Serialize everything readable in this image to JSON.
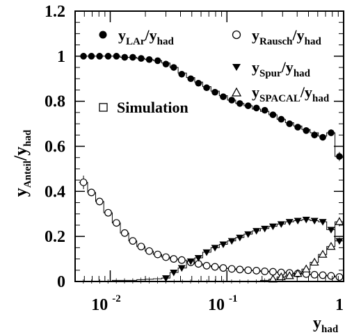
{
  "chart_data": {
    "type": "scatter",
    "x_scale": "log",
    "xlim": [
      0.005,
      1.0
    ],
    "ylim": [
      0,
      1.2
    ],
    "x_ticks": [
      {
        "value": 0.01,
        "base": "10",
        "exp": "-2"
      },
      {
        "value": 0.1,
        "base": "10",
        "exp": "-1"
      },
      {
        "value": 1.0,
        "base": "1",
        "exp": ""
      }
    ],
    "y_ticks": [
      {
        "value": 0,
        "label": "0"
      },
      {
        "value": 0.2,
        "label": "0.2"
      },
      {
        "value": 0.4,
        "label": "0.4"
      },
      {
        "value": 0.6,
        "label": "0.6"
      },
      {
        "value": 0.8,
        "label": "0.8"
      },
      {
        "value": 1.0,
        "label": "1"
      },
      {
        "value": 1.2,
        "label": "1.2"
      }
    ],
    "xlabel": {
      "main": "y",
      "sub": "had"
    },
    "ylabel": {
      "main1": "y",
      "sub1": "Anteil",
      "main2": "/y",
      "sub2": "had"
    },
    "legend": [
      {
        "marker": "filled-circle",
        "main": "y",
        "sub": "LAr",
        "slash": "/y",
        "sub2": "had"
      },
      {
        "marker": "open-circle",
        "main": "y",
        "sub": "Rausch",
        "slash": "/y",
        "sub2": "had"
      },
      {
        "marker": "filled-triangle-down",
        "main": "y",
        "sub": "Spur",
        "slash": "/y",
        "sub2": "had"
      },
      {
        "marker": "open-triangle-up",
        "main": "y",
        "sub": "SPACAL",
        "slash": "/y",
        "sub2": "had"
      },
      {
        "marker": "open-square",
        "text": "Simulation"
      }
    ],
    "series": [
      {
        "marker": "filled-circle",
        "x": [
          0.0059,
          0.0069,
          0.0081,
          0.0096,
          0.0113,
          0.0133,
          0.0156,
          0.0184,
          0.0216,
          0.0255,
          0.03,
          0.035,
          0.041,
          0.049,
          0.057,
          0.067,
          0.079,
          0.093,
          0.11,
          0.129,
          0.152,
          0.179,
          0.211,
          0.248,
          0.292,
          0.344,
          0.405,
          0.478,
          0.563,
          0.663,
          0.781,
          0.92
        ],
        "y": [
          1.0,
          1.0,
          1.0,
          1.0,
          1.0,
          0.995,
          0.995,
          0.99,
          0.985,
          0.98,
          0.965,
          0.95,
          0.92,
          0.9,
          0.88,
          0.86,
          0.84,
          0.82,
          0.805,
          0.79,
          0.78,
          0.77,
          0.76,
          0.74,
          0.72,
          0.7,
          0.685,
          0.67,
          0.65,
          0.64,
          0.66,
          0.555
        ],
        "yerr": [
          0.006,
          0.004,
          0.004,
          0.004,
          0.004,
          0.004,
          0.004,
          0.004,
          0.004,
          0.004,
          0.004,
          0.004,
          0.004,
          0.004,
          0.004,
          0.004,
          0.004,
          0.004,
          0.005,
          0.005,
          0.005,
          0.005,
          0.005,
          0.005,
          0.006,
          0.006,
          0.006,
          0.008,
          0.01,
          0.012,
          0.015,
          0.02
        ]
      },
      {
        "marker": "open-circle",
        "x": [
          0.0059,
          0.0069,
          0.0081,
          0.0096,
          0.0113,
          0.0133,
          0.0156,
          0.0184,
          0.0216,
          0.0255,
          0.03,
          0.035,
          0.041,
          0.049,
          0.057,
          0.067,
          0.079,
          0.093,
          0.11,
          0.129,
          0.152,
          0.179,
          0.211,
          0.248,
          0.292,
          0.344,
          0.405,
          0.478,
          0.563,
          0.663,
          0.781,
          0.92
        ],
        "y": [
          0.44,
          0.395,
          0.355,
          0.305,
          0.26,
          0.215,
          0.18,
          0.155,
          0.135,
          0.12,
          0.108,
          0.1,
          0.095,
          0.085,
          0.078,
          0.07,
          0.065,
          0.06,
          0.056,
          0.053,
          0.05,
          0.048,
          0.045,
          0.043,
          0.04,
          0.038,
          0.035,
          0.033,
          0.03,
          0.028,
          0.025,
          0.02
        ],
        "yerr": [
          0.03,
          0.015,
          0.01,
          0.008,
          0.006,
          0.005,
          0.005,
          0.004,
          0.004,
          0.004,
          0.004,
          0.004,
          0.004,
          0.004,
          0.004,
          0.004,
          0.004,
          0.004,
          0.004,
          0.004,
          0.004,
          0.004,
          0.004,
          0.004,
          0.004,
          0.004,
          0.004,
          0.005,
          0.005,
          0.005,
          0.006,
          0.008
        ]
      },
      {
        "marker": "filled-triangle-down",
        "x": [
          0.03,
          0.035,
          0.041,
          0.049,
          0.057,
          0.067,
          0.079,
          0.093,
          0.11,
          0.129,
          0.152,
          0.179,
          0.211,
          0.248,
          0.292,
          0.344,
          0.405,
          0.478,
          0.563,
          0.663,
          0.781,
          0.92
        ],
        "y": [
          0.015,
          0.04,
          0.06,
          0.09,
          0.105,
          0.13,
          0.15,
          0.165,
          0.18,
          0.195,
          0.21,
          0.225,
          0.235,
          0.245,
          0.255,
          0.265,
          0.27,
          0.275,
          0.27,
          0.265,
          0.23,
          0.18
        ],
        "yerr": [
          0.004,
          0.004,
          0.004,
          0.004,
          0.004,
          0.004,
          0.004,
          0.004,
          0.004,
          0.004,
          0.004,
          0.004,
          0.004,
          0.004,
          0.005,
          0.005,
          0.005,
          0.006,
          0.007,
          0.008,
          0.01,
          0.015
        ]
      },
      {
        "marker": "open-triangle-up",
        "x": [
          0.248,
          0.292,
          0.344,
          0.405,
          0.478,
          0.563,
          0.663,
          0.781,
          0.92
        ],
        "y": [
          0.01,
          0.02,
          0.025,
          0.035,
          0.055,
          0.085,
          0.12,
          0.155,
          0.265
        ],
        "yerr": [
          0.003,
          0.003,
          0.004,
          0.004,
          0.005,
          0.006,
          0.008,
          0.01,
          0.02
        ]
      }
    ],
    "simulation": [
      {
        "edges": [
          0.0054,
          0.0064,
          0.0075,
          0.0088,
          0.0104,
          0.0122,
          0.0144,
          0.0169,
          0.0199,
          0.0234,
          0.0276,
          0.0325,
          0.0382,
          0.045,
          0.053,
          0.062,
          0.073,
          0.086,
          0.101,
          0.119,
          0.14,
          0.165,
          0.194,
          0.229,
          0.269,
          0.317,
          0.373,
          0.439,
          0.517,
          0.608,
          0.716,
          0.843,
          1.0
        ],
        "values": [
          1.0,
          1.0,
          1.0,
          1.0,
          1.0,
          0.995,
          0.995,
          0.99,
          0.985,
          0.98,
          0.97,
          0.95,
          0.925,
          0.905,
          0.885,
          0.865,
          0.845,
          0.825,
          0.805,
          0.79,
          0.78,
          0.765,
          0.755,
          0.74,
          0.72,
          0.705,
          0.69,
          0.675,
          0.66,
          0.645,
          0.66,
          0.555
        ]
      },
      {
        "edges": [
          0.0054,
          0.0064,
          0.0075,
          0.0088,
          0.0104,
          0.0122,
          0.0144,
          0.0169,
          0.0199,
          0.0234,
          0.0276,
          0.0325,
          0.0382,
          0.045,
          0.053,
          0.062,
          0.073,
          0.086,
          0.101,
          0.119,
          0.14,
          0.165,
          0.194,
          0.229,
          0.269,
          0.317,
          0.373,
          0.439,
          0.517,
          0.608,
          0.716,
          0.843,
          1.0
        ],
        "values": [
          0.44,
          0.395,
          0.355,
          0.305,
          0.26,
          0.215,
          0.18,
          0.155,
          0.135,
          0.12,
          0.108,
          0.1,
          0.095,
          0.085,
          0.078,
          0.07,
          0.065,
          0.06,
          0.056,
          0.053,
          0.05,
          0.048,
          0.045,
          0.043,
          0.04,
          0.038,
          0.035,
          0.033,
          0.03,
          0.028,
          0.025,
          0.02
        ]
      },
      {
        "edges": [
          0.0054,
          0.0064,
          0.0075,
          0.0088,
          0.0104,
          0.0122,
          0.0144,
          0.0169,
          0.0199,
          0.0234,
          0.0276,
          0.0325,
          0.0382,
          0.045,
          0.053,
          0.062,
          0.073,
          0.086,
          0.101,
          0.119,
          0.14,
          0.165,
          0.194,
          0.229,
          0.269,
          0.317,
          0.373,
          0.439,
          0.517,
          0.608,
          0.716,
          0.843,
          1.0
        ],
        "values": [
          0.0,
          0.0,
          0.0,
          0.0,
          0.005,
          0.005,
          0.005,
          0.008,
          0.01,
          0.012,
          0.015,
          0.04,
          0.06,
          0.09,
          0.105,
          0.13,
          0.15,
          0.165,
          0.18,
          0.195,
          0.21,
          0.225,
          0.235,
          0.245,
          0.255,
          0.265,
          0.27,
          0.275,
          0.27,
          0.265,
          0.23,
          0.18
        ]
      },
      {
        "edges": [
          0.0054,
          0.0064,
          0.0075,
          0.0088,
          0.0104,
          0.0122,
          0.0144,
          0.0169,
          0.0199,
          0.0234,
          0.0276,
          0.0325,
          0.0382,
          0.045,
          0.053,
          0.062,
          0.073,
          0.086,
          0.101,
          0.119,
          0.14,
          0.165,
          0.194,
          0.229,
          0.269,
          0.317,
          0.373,
          0.439,
          0.517,
          0.608,
          0.716,
          0.843,
          1.0
        ],
        "values": [
          0.0,
          0.0,
          0.0,
          0.0,
          0.0,
          0.0,
          0.0,
          0.0,
          0.0,
          0.0,
          0.0,
          0.0,
          0.0,
          0.0,
          0.0,
          0.0,
          0.0,
          0.0,
          0.0,
          0.0,
          0.0,
          0.0,
          0.005,
          0.01,
          0.02,
          0.025,
          0.035,
          0.055,
          0.085,
          0.12,
          0.155,
          0.265
        ]
      }
    ]
  }
}
